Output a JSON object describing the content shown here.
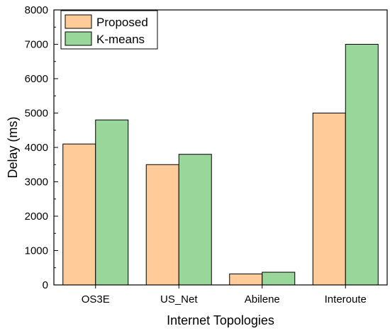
{
  "chart_data": {
    "type": "bar",
    "xlabel": "Internet Topologies",
    "ylabel": "Delay (ms)",
    "categories": [
      "OS3E",
      "US_Net",
      "Abilene",
      "Interoute"
    ],
    "ylim": [
      0,
      8000
    ],
    "yticks": [
      0,
      1000,
      2000,
      3000,
      4000,
      5000,
      6000,
      7000,
      8000
    ],
    "legend_position": "top-left",
    "grid": false,
    "series": [
      {
        "name": "Proposed",
        "values": [
          4100,
          3500,
          320,
          5000
        ],
        "color": "#FFCC99"
      },
      {
        "name": "K-means",
        "values": [
          4800,
          3800,
          370,
          7000
        ],
        "color": "#99D699"
      }
    ]
  }
}
